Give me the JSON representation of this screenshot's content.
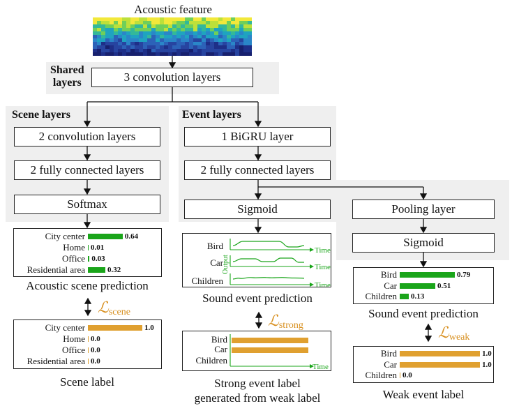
{
  "input": {
    "label": "Acoustic feature"
  },
  "shared": {
    "title_line1": "Shared",
    "title_line2": "layers",
    "conv": "3 convolution layers"
  },
  "scene": {
    "title": "Scene layers",
    "conv": "2 convolution layers",
    "fc": "2 fully connected layers",
    "softmax": "Softmax",
    "prediction": {
      "caption": "Acoustic scene prediction",
      "rows": [
        {
          "name": "City center",
          "value": 0.64,
          "label": "0.64"
        },
        {
          "name": "Home",
          "value": 0.01,
          "label": "0.01"
        },
        {
          "name": "Office",
          "value": 0.03,
          "label": "0.03"
        },
        {
          "name": "Residential area",
          "value": 0.32,
          "label": "0.32"
        }
      ]
    },
    "loss": {
      "symbol": "ℒ",
      "sub": "scene"
    },
    "label": {
      "caption": "Scene label",
      "rows": [
        {
          "name": "City center",
          "value": 1.0,
          "label": "1.0"
        },
        {
          "name": "Home",
          "value": 0.0,
          "label": "0.0"
        },
        {
          "name": "Office",
          "value": 0.0,
          "label": "0.0"
        },
        {
          "name": "Residential area",
          "value": 0.0,
          "label": "0.0"
        }
      ]
    }
  },
  "event": {
    "title": "Event layers",
    "bigru": "1 BiGRU layer",
    "fc": "2 fully connected layers",
    "sigmoid_strong": "Sigmoid",
    "pooling": "Pooling layer",
    "sigmoid_weak": "Sigmoid",
    "strong_pred": {
      "caption": "Sound event prediction",
      "rows": [
        "Bird",
        "Car",
        "Children"
      ],
      "axis_y": "Output",
      "axis_x": "Time"
    },
    "strong_loss": {
      "symbol": "ℒ",
      "sub": "strong"
    },
    "strong_label": {
      "caption_line1": "Strong event label",
      "caption_line2": "generated from weak label",
      "rows": [
        "Bird",
        "Car",
        "Children"
      ],
      "axis_x": "Time"
    },
    "weak_pred": {
      "caption": "Sound event prediction",
      "rows": [
        {
          "name": "Bird",
          "value": 0.79,
          "label": "0.79"
        },
        {
          "name": "Car",
          "value": 0.51,
          "label": "0.51"
        },
        {
          "name": "Children",
          "value": 0.13,
          "label": "0.13"
        }
      ]
    },
    "weak_loss": {
      "symbol": "ℒ",
      "sub": "weak"
    },
    "weak_label": {
      "caption": "Weak event label",
      "rows": [
        {
          "name": "Bird",
          "value": 1.0,
          "label": "1.0"
        },
        {
          "name": "Car",
          "value": 1.0,
          "label": "1.0"
        },
        {
          "name": "Children",
          "value": 0.0,
          "label": "0.0"
        }
      ]
    }
  },
  "colors": {
    "prediction": "#1aa51a",
    "label": "#e0a030",
    "loss": "#d89020",
    "panel": "#efefef"
  }
}
